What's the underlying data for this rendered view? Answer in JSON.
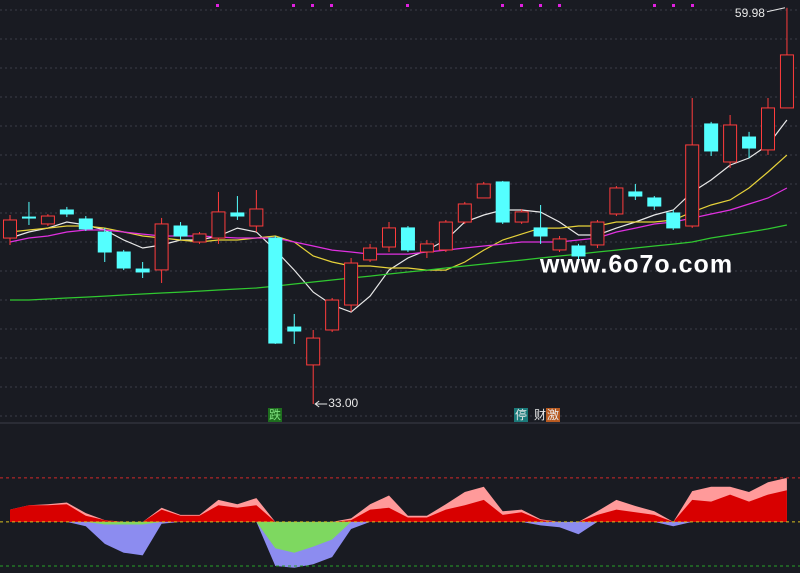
{
  "chart_data": [
    {
      "type": "candlestick",
      "ylim": [
        31.91,
        60.51
      ],
      "up_color": "#ff3c3c",
      "down_color": "#54ffff",
      "open": [
        44.3,
        45.73,
        45.26,
        46.21,
        45.6,
        44.71,
        43.35,
        42.19,
        42.13,
        45.12,
        44.03,
        44.3,
        46.01,
        45.12,
        44.3,
        38.24,
        35.66,
        38.04,
        39.74,
        42.81,
        43.69,
        44.99,
        43.35,
        43.49,
        45.39,
        47.03,
        48.12,
        45.39,
        44.99,
        43.49,
        43.76,
        43.83,
        45.94,
        47.44,
        47.03,
        46.01,
        45.12,
        52.07,
        49.48,
        51.18,
        50.3,
        53.16
      ],
      "high": [
        45.87,
        46.76,
        45.93,
        46.42,
        45.8,
        44.99,
        43.49,
        42.67,
        45.67,
        45.39,
        44.71,
        47.44,
        47.16,
        47.57,
        44.44,
        39.13,
        38.04,
        40.22,
        42.94,
        43.9,
        45.39,
        45.12,
        44.17,
        45.53,
        46.76,
        48.12,
        48.19,
        46.28,
        46.55,
        44.44,
        43.9,
        45.53,
        47.84,
        47.98,
        47.16,
        46.21,
        53.84,
        52.21,
        52.68,
        51.53,
        53.84,
        59.98
      ],
      "low": [
        43.83,
        45.19,
        45.12,
        45.73,
        44.78,
        42.67,
        42.12,
        41.58,
        41.24,
        44.17,
        43.9,
        43.9,
        45.53,
        44.71,
        37.09,
        37.09,
        33.0,
        37.9,
        39.27,
        42.67,
        43.35,
        43.35,
        42.94,
        43.35,
        45.26,
        47.16,
        45.26,
        45.26,
        43.9,
        43.35,
        42.67,
        43.62,
        45.8,
        46.89,
        46.21,
        44.85,
        44.99,
        49.89,
        49.07,
        49.75,
        49.96,
        53.16
      ],
      "close": [
        45.53,
        45.66,
        45.8,
        45.94,
        44.92,
        43.35,
        42.26,
        41.99,
        45.26,
        44.44,
        44.58,
        46.08,
        45.8,
        46.28,
        37.15,
        37.97,
        37.49,
        40.08,
        42.6,
        43.62,
        44.99,
        43.49,
        43.9,
        45.39,
        46.62,
        47.98,
        45.39,
        46.08,
        44.44,
        44.24,
        43.08,
        45.39,
        47.71,
        47.16,
        46.48,
        44.99,
        50.64,
        50.23,
        52.0,
        50.43,
        53.16,
        56.77
      ],
      "series": [
        {
          "color": "#e8e8e8",
          "values": [
            44.3,
            44.71,
            44.98,
            45.39,
            45.19,
            44.85,
            44.17,
            43.62,
            43.83,
            44.17,
            44.17,
            44.44,
            44.98,
            44.71,
            43.48,
            42.12,
            40.62,
            39.74,
            39.26,
            40.35,
            42.12,
            42.94,
            43.48,
            44.17,
            45.39,
            45.87,
            46.21,
            46.21,
            46.07,
            45.39,
            44.51,
            44.51,
            44.98,
            45.39,
            45.87,
            46.21,
            47.43,
            48.25,
            49.27,
            49.75,
            50.64,
            52.34
          ]
        },
        {
          "color": "#e6d23a",
          "values": [
            44.71,
            44.85,
            44.98,
            45.12,
            45.12,
            44.98,
            44.71,
            44.44,
            44.3,
            44.17,
            44.03,
            44.17,
            44.17,
            44.3,
            44.44,
            44.03,
            43.08,
            42.67,
            42.4,
            42.4,
            42.26,
            42.26,
            42.12,
            42.12,
            42.67,
            43.48,
            44.17,
            44.57,
            44.98,
            44.98,
            45.12,
            45.12,
            45.39,
            45.39,
            45.39,
            45.53,
            46.07,
            46.55,
            46.89,
            47.71,
            48.8,
            49.95
          ]
        },
        {
          "color": "#e030e0",
          "values": [
            44.03,
            44.3,
            44.44,
            44.71,
            44.85,
            44.85,
            44.71,
            44.57,
            44.44,
            44.44,
            44.44,
            44.37,
            44.3,
            44.3,
            44.3,
            44.03,
            43.76,
            43.48,
            43.35,
            43.21,
            43.21,
            43.21,
            43.35,
            43.48,
            43.62,
            43.76,
            43.89,
            44.03,
            44.03,
            44.03,
            44.17,
            44.3,
            44.71,
            44.98,
            45.26,
            45.39,
            45.66,
            45.94,
            46.21,
            46.62,
            47.03,
            47.71
          ]
        },
        {
          "color": "#30c830",
          "values": [
            40.08,
            40.08,
            40.15,
            40.22,
            40.28,
            40.35,
            40.42,
            40.49,
            40.56,
            40.62,
            40.69,
            40.76,
            40.83,
            40.9,
            41.03,
            41.17,
            41.31,
            41.44,
            41.58,
            41.71,
            41.85,
            41.99,
            42.12,
            42.26,
            42.4,
            42.53,
            42.67,
            42.8,
            42.94,
            43.08,
            43.21,
            43.35,
            43.48,
            43.62,
            43.76,
            43.89,
            44.03,
            44.3,
            44.51,
            44.71,
            44.92,
            45.19
          ]
        }
      ],
      "high_label": {
        "value": 59.98,
        "label": "59.98"
      },
      "low_label": {
        "value": 33.0,
        "label": "33.00"
      }
    },
    {
      "type": "area",
      "ylim": [
        -58,
        110
      ],
      "hlines": [
        {
          "value": 50,
          "color": "#d02828"
        },
        {
          "value": 0,
          "color": "#d8c020"
        },
        {
          "value": -50,
          "color": "#28a028"
        }
      ],
      "series": [
        {
          "color": "#ff9a9a",
          "values": [
            14,
            19,
            20,
            22,
            10,
            2,
            0,
            0,
            16,
            8,
            8,
            25,
            20,
            27,
            0,
            0,
            0,
            0,
            4,
            20,
            30,
            7,
            7,
            20,
            34,
            40,
            12,
            14,
            3,
            0,
            0,
            12,
            25,
            18,
            12,
            0,
            35,
            40,
            40,
            34,
            45,
            50
          ]
        },
        {
          "color": "#d80000",
          "values": [
            14,
            19,
            19,
            20,
            7,
            2,
            0,
            0,
            14,
            7,
            7,
            19,
            16,
            19,
            0,
            0,
            0,
            0,
            2,
            14,
            16,
            5,
            5,
            14,
            19,
            25,
            8,
            11,
            2,
            0,
            0,
            8,
            14,
            11,
            8,
            0,
            25,
            23,
            31,
            23,
            31,
            36
          ]
        },
        {
          "color": "#8c8cf0",
          "values": [
            0,
            0,
            0,
            0,
            -5,
            -25,
            -35,
            -38,
            -2,
            0,
            0,
            0,
            0,
            0,
            -50,
            -52,
            -48,
            -40,
            -8,
            0,
            0,
            0,
            0,
            0,
            0,
            0,
            0,
            0,
            -4,
            -6,
            -14,
            0,
            0,
            0,
            0,
            -5,
            0,
            0,
            0,
            0,
            0,
            0
          ]
        },
        {
          "color": "#7ed860",
          "values": [
            0,
            0,
            0,
            0,
            0,
            -3,
            -3,
            -3,
            0,
            0,
            0,
            0,
            0,
            0,
            -30,
            -35,
            -28,
            -20,
            0,
            0,
            0,
            0,
            0,
            0,
            0,
            0,
            0,
            0,
            0,
            0,
            0,
            0,
            0,
            0,
            0,
            0,
            0,
            0,
            0,
            0,
            0,
            0
          ]
        }
      ]
    }
  ],
  "badges": [
    {
      "text": "跌",
      "color": "#1e6e1e"
    },
    {
      "text": "停",
      "color": "#1a7a7a"
    },
    {
      "text": "财",
      "color": "#1a1d24"
    },
    {
      "text": "激",
      "color": "#b85a20"
    }
  ],
  "watermark": "www.6o7o.com"
}
